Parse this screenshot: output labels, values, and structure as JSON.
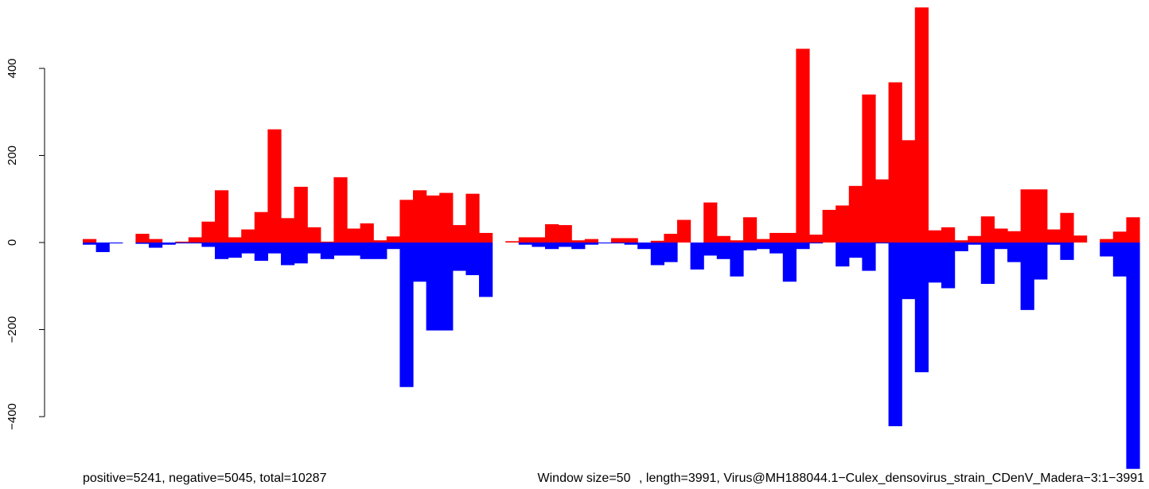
{
  "chart_data": {
    "type": "bar",
    "bar_style": "mirrored",
    "title": "",
    "xlabel_left": "positive=5241, negative=5045, total=10287",
    "xlabel_center": "Window size=50",
    "xlabel_right": ", length=3991, Virus@MH188044.1−Culex_densovirus_strain_CDenV_Madera−3:1−3991",
    "ylabel": "",
    "ylim": [
      -530,
      540
    ],
    "y_ticks": [
      -400,
      -200,
      0,
      200,
      400
    ],
    "y_tick_labels": [
      "−400",
      "−200",
      "0",
      "200",
      "400"
    ],
    "grid": false,
    "legend": "none",
    "colors": {
      "positive": "#ff0000",
      "negative": "#0000ff"
    },
    "series": [
      {
        "name": "positive",
        "values": [
          8,
          0,
          0,
          0,
          20,
          8,
          0,
          2,
          12,
          48,
          120,
          12,
          30,
          70,
          260,
          56,
          128,
          35,
          2,
          150,
          32,
          44,
          5,
          14,
          98,
          120,
          108,
          114,
          40,
          112,
          22,
          0,
          3,
          12,
          12,
          42,
          40,
          5,
          8,
          0,
          10,
          10,
          0,
          4,
          20,
          52,
          0,
          92,
          15,
          5,
          58,
          8,
          22,
          22,
          445,
          18,
          75,
          85,
          130,
          340,
          145,
          368,
          235,
          540,
          28,
          35,
          5,
          15,
          60,
          32,
          26,
          122,
          122,
          30,
          68,
          16,
          0,
          8,
          25,
          58
        ]
      },
      {
        "name": "negative",
        "values": [
          -5,
          -22,
          -2,
          0,
          -3,
          -12,
          -5,
          -2,
          -2,
          -10,
          -38,
          -35,
          -25,
          -42,
          -25,
          -52,
          -48,
          -25,
          -38,
          -30,
          -30,
          -38,
          -38,
          -15,
          -332,
          -90,
          -202,
          -202,
          -65,
          -75,
          -125,
          0,
          0,
          -5,
          -10,
          -15,
          -10,
          -15,
          -5,
          -2,
          -2,
          -5,
          -15,
          -52,
          -45,
          0,
          -62,
          -30,
          -38,
          -78,
          -18,
          -15,
          -25,
          -90,
          -15,
          -2,
          0,
          -55,
          -35,
          -65,
          -2,
          -422,
          -130,
          -298,
          -92,
          -105,
          -20,
          -5,
          -95,
          -15,
          -45,
          -155,
          -85,
          -5,
          -40,
          0,
          0,
          -32,
          -78,
          -520
        ]
      }
    ]
  }
}
